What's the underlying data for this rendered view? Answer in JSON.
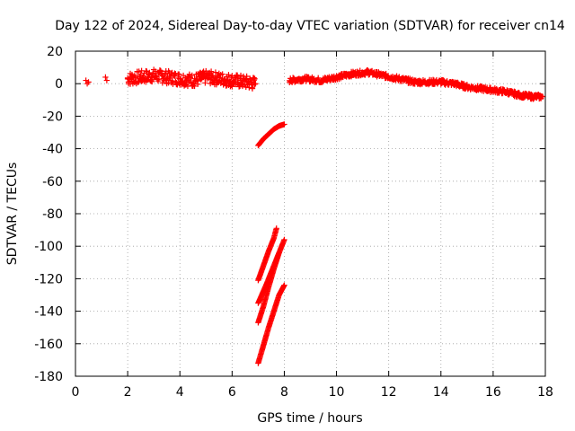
{
  "chart_data": {
    "type": "scatter",
    "title": "Day 122 of 2024, Sidereal Day-to-day VTEC variation (SDTVAR) for receiver cn14",
    "xlabel": "GPS time / hours",
    "ylabel": "SDTVAR / TECUs",
    "xlim": [
      0,
      18
    ],
    "ylim": [
      -180,
      20
    ],
    "xticks": [
      0,
      2,
      4,
      6,
      8,
      10,
      12,
      14,
      16,
      18
    ],
    "yticks": [
      20,
      0,
      -20,
      -40,
      -60,
      -80,
      -100,
      -120,
      -140,
      -160,
      -180
    ],
    "grid": true,
    "marker": "+",
    "series_color": "#ff0000",
    "segments": [
      {
        "name": "early-sparse-1",
        "x": [
          0.4,
          0.45,
          0.5,
          1.15,
          1.2
        ],
        "y": [
          2,
          0,
          1,
          4,
          2
        ]
      },
      {
        "name": "main-band-1",
        "x": [
          2.0,
          2.5,
          3.0,
          3.5,
          4.0,
          4.5,
          5.0,
          5.5,
          6.0,
          6.5,
          6.9
        ],
        "y": [
          3,
          4,
          5,
          4,
          3,
          2,
          4,
          3,
          2,
          1,
          0
        ],
        "spread": 4
      },
      {
        "name": "arc-upper",
        "x": [
          7.0,
          7.2,
          7.4,
          7.6,
          7.8,
          8.0
        ],
        "y": [
          -38,
          -34,
          -31,
          -28,
          -26,
          -25
        ]
      },
      {
        "name": "streak-1",
        "x": [
          7.0,
          7.2,
          7.4,
          7.6,
          7.7
        ],
        "y": [
          -121,
          -112,
          -103,
          -95,
          -89
        ]
      },
      {
        "name": "streak-2",
        "x": [
          7.0,
          7.2,
          7.4,
          7.6,
          7.8
        ],
        "y": [
          -147,
          -137,
          -125,
          -114,
          -104
        ]
      },
      {
        "name": "streak-3",
        "x": [
          7.0,
          7.3,
          7.6,
          7.8,
          8.0
        ],
        "y": [
          -135,
          -124,
          -112,
          -104,
          -96
        ]
      },
      {
        "name": "streak-4",
        "x": [
          7.0,
          7.2,
          7.4,
          7.6,
          7.8,
          8.0
        ],
        "y": [
          -172,
          -161,
          -150,
          -140,
          -130,
          -124
        ]
      },
      {
        "name": "main-band-2",
        "x": [
          8.2,
          8.8,
          9.4,
          10.0,
          10.6,
          11.2,
          11.8,
          12.4,
          13.0,
          13.6,
          14.0
        ],
        "y": [
          2,
          3,
          2,
          4,
          6,
          7,
          5,
          3,
          1,
          1,
          1
        ],
        "spread": 1.5
      },
      {
        "name": "main-band-3",
        "x": [
          14.0,
          14.5,
          15.0,
          15.5,
          16.0,
          16.5,
          17.0,
          17.5,
          17.9
        ],
        "y": [
          1,
          0,
          -2,
          -3,
          -4,
          -5,
          -7,
          -8,
          -8
        ],
        "spread": 1.5
      }
    ]
  }
}
